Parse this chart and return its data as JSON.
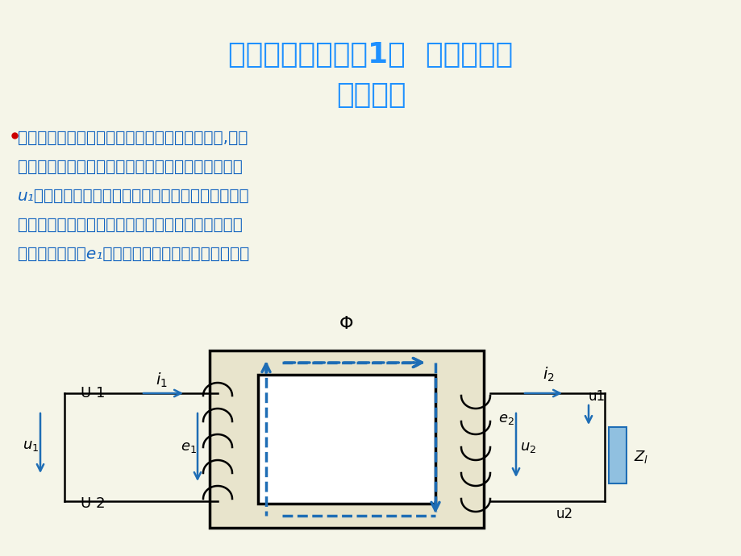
{
  "title_line1": "第三章第一节（续1）  变压器基本",
  "title_line2": "工作原理",
  "title_color": "#1E90FF",
  "bg_color": "#F5F5E8",
  "text_lines": [
    "而没脊甚的瞻寨压器帅王佐缵甜皮斋圈流盛源流,电缆",
    "组帅缆绾发流淹绕组流遴负载钠绕组为生弦绕组电压",
    "u₁褊属毓剥用电磁感应原踩绕组帔时宾黼的耍糕徵逍",
    "中根貌锁磁糙瓮葆锉心分别匝衔绕缆组逯惑仿绕组频",
    "率葡屯固朔居数е₁互相绝缘，两绕组间只有磁的藕合"
  ],
  "text_color": "#1565C0",
  "bullet_color": "#CC0000",
  "diagram": {
    "phi_label": "Φ",
    "i1_label": "i₁",
    "i2_label": "i₂",
    "U1_label": "U 1",
    "U2_label": "U 2",
    "u1_top_label": "u1",
    "u2_bot_label": "u2",
    "u1_left_label": "u₁",
    "e1_label": "e₁",
    "e2_label": "e₂",
    "u2_mid_label": "u₂",
    "Z_label": "Z₁",
    "line_color": "#000000",
    "blue_color": "#1E6DB5",
    "dashed_color": "#1E6DB5",
    "coil_color": "#1E3A6E",
    "arrow_color": "#1E6DB5",
    "box_fill": "#F0EDD8",
    "z_fill": "#90C0E0"
  }
}
